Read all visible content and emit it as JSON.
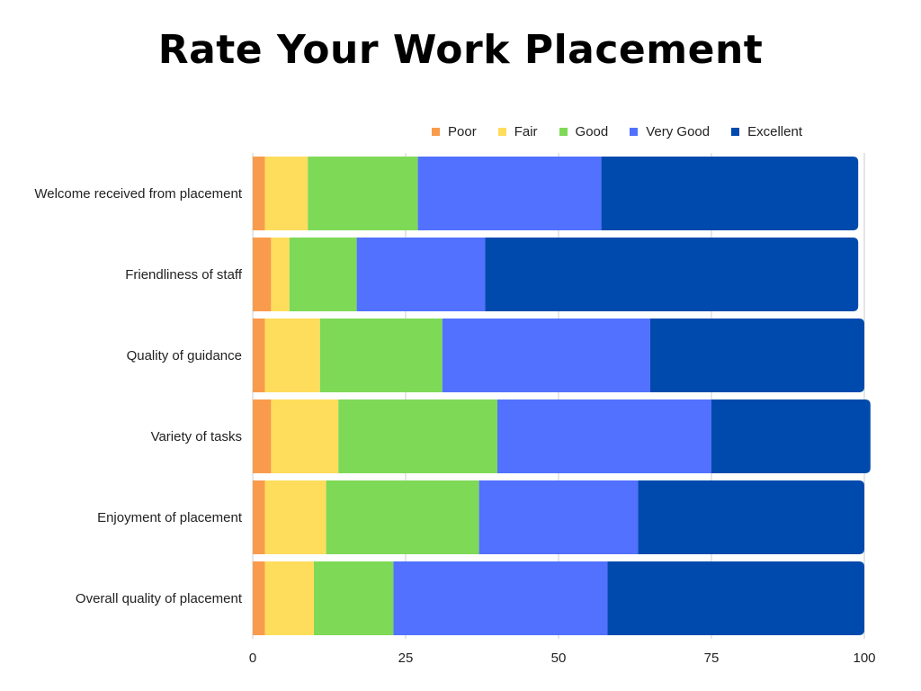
{
  "chart_data": {
    "type": "bar",
    "orientation": "horizontal",
    "stacked": true,
    "title": "Rate Your Work Placement",
    "categories": [
      "Welcome received from placement",
      "Friendliness of staff",
      "Quality of guidance",
      "Variety of tasks",
      "Enjoyment of placement",
      "Overall quality of placement"
    ],
    "series": [
      {
        "name": "Poor",
        "color": "#F99B4D",
        "values": [
          2,
          3,
          2,
          3,
          2,
          2
        ]
      },
      {
        "name": "Fair",
        "color": "#FFDD5C",
        "values": [
          7,
          3,
          9,
          11,
          10,
          8
        ]
      },
      {
        "name": "Good",
        "color": "#7ED957",
        "values": [
          18,
          11,
          20,
          26,
          25,
          13
        ]
      },
      {
        "name": "Very Good",
        "color": "#5271FF",
        "values": [
          30,
          21,
          34,
          35,
          26,
          35
        ]
      },
      {
        "name": "Excellent",
        "color": "#004AAD",
        "values": [
          42,
          61,
          35,
          26,
          37,
          42
        ]
      }
    ],
    "xlim": [
      0,
      100
    ],
    "xticks": [
      "0",
      "25",
      "50",
      "75",
      "100"
    ],
    "grid": true,
    "legend": "top-right"
  }
}
